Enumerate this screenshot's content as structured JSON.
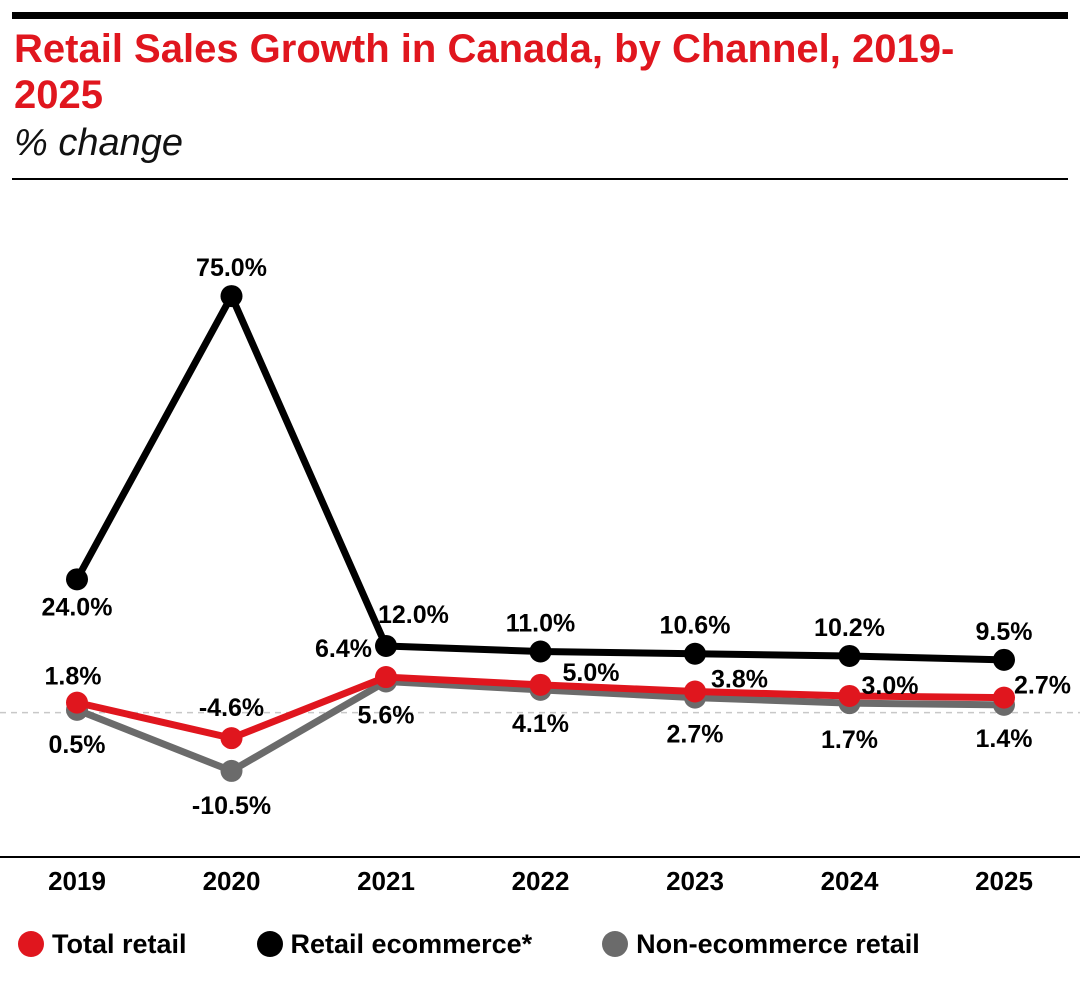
{
  "title": "Retail Sales Growth in Canada, by Channel, 2019-2025",
  "subtitle": "% change",
  "chart_data": {
    "type": "line",
    "categories": [
      "2019",
      "2020",
      "2021",
      "2022",
      "2023",
      "2024",
      "2025"
    ],
    "series": [
      {
        "name": "Total retail",
        "color": "#e0161e",
        "values": [
          1.8,
          -4.6,
          6.4,
          5.0,
          3.8,
          3.0,
          2.7
        ],
        "labels": [
          "1.8%",
          "-4.6%",
          "6.4%",
          "5.0%",
          "3.8%",
          "3.0%",
          "2.7%"
        ]
      },
      {
        "name": "Retail ecommerce*",
        "color": "#000000",
        "values": [
          24.0,
          75.0,
          12.0,
          11.0,
          10.6,
          10.2,
          9.5
        ],
        "labels": [
          "24.0%",
          "75.0%",
          "12.0%",
          "11.0%",
          "10.6%",
          "10.2%",
          "9.5%"
        ]
      },
      {
        "name": "Non-ecommerce retail",
        "color": "#6b6b6b",
        "values": [
          0.5,
          -10.5,
          5.6,
          4.1,
          2.7,
          1.7,
          1.4
        ],
        "labels": [
          "0.5%",
          "-10.5%",
          "5.6%",
          "4.1%",
          "2.7%",
          "1.7%",
          "1.4%"
        ]
      }
    ],
    "ylim": [
      -26,
      95
    ],
    "zero_line": true
  }
}
